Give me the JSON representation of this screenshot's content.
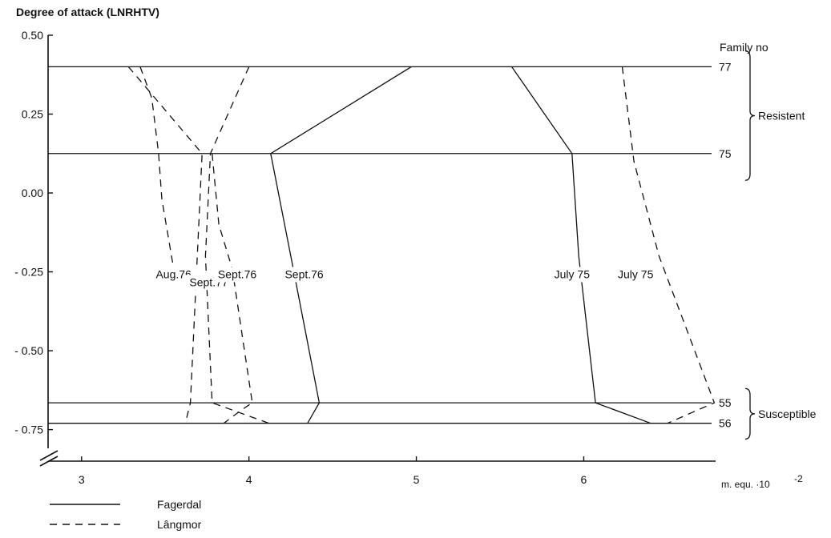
{
  "chart_data": {
    "type": "line",
    "ylabel": "Degree of attack (LNRHTV)",
    "xlabel": "m. equ. ·10",
    "xlabel_exponent": "-2",
    "xlim": [
      2.8,
      6.85
    ],
    "ylim": [
      -0.85,
      0.5
    ],
    "xticks": [
      3,
      4,
      5,
      6
    ],
    "xtick_labels": [
      "3",
      "4",
      "5",
      "6"
    ],
    "yticks": [
      0.5,
      0.25,
      0.0,
      -0.25,
      -0.5,
      -0.75
    ],
    "ytick_labels": [
      "0.50",
      "0.25",
      "0.00",
      "- 0.25",
      "- 0.50",
      "- 0.75"
    ],
    "family_header": "Family no",
    "families": [
      {
        "name": "77",
        "y": 0.4
      },
      {
        "name": "75",
        "y": 0.125
      },
      {
        "name": "55",
        "y": -0.665
      },
      {
        "name": "56",
        "y": -0.73
      }
    ],
    "groups": [
      {
        "label": "Resistent",
        "y_from": 0.45,
        "y_to": 0.04
      },
      {
        "label": "Susceptible",
        "y_from": -0.62,
        "y_to": -0.78
      }
    ],
    "series": [
      {
        "name": "Aug.76",
        "style": "dashed",
        "label_pos": [
          3.55,
          -0.27
        ],
        "points": [
          [
            3.28,
            0.4
          ],
          [
            3.72,
            0.125
          ],
          [
            3.65,
            -0.665
          ],
          [
            3.62,
            -0.73
          ]
        ]
      },
      {
        "name": "Aug.76",
        "style": "dashed",
        "label_pos": null,
        "points": [
          [
            3.35,
            0.4
          ],
          [
            3.42,
            0.3
          ],
          [
            3.46,
            0.125
          ],
          [
            3.48,
            -0.02
          ],
          [
            3.55,
            -0.24
          ]
        ]
      },
      {
        "name": "Sept.77",
        "style": "dashed",
        "label_pos": [
          3.76,
          -0.295
        ],
        "points": [
          [
            4.0,
            0.4
          ],
          [
            3.77,
            0.125
          ],
          [
            3.74,
            -0.2
          ],
          [
            3.78,
            -0.665
          ],
          [
            4.12,
            -0.73
          ]
        ]
      },
      {
        "name": "Sept.76",
        "style": "dashed",
        "label_pos": [
          3.93,
          -0.27
        ],
        "points": [
          [
            3.78,
            0.125
          ],
          [
            3.82,
            -0.1
          ],
          [
            3.9,
            -0.24
          ],
          [
            4.02,
            -0.665
          ],
          [
            3.95,
            -0.69
          ],
          [
            3.85,
            -0.73
          ]
        ]
      },
      {
        "name": "Sept.76",
        "style": "solid",
        "label_pos": [
          4.33,
          -0.27
        ],
        "points": [
          [
            4.97,
            0.4
          ],
          [
            4.13,
            0.125
          ],
          [
            4.25,
            -0.2
          ],
          [
            4.42,
            -0.665
          ],
          [
            4.35,
            -0.73
          ]
        ]
      },
      {
        "name": "July 75",
        "style": "solid",
        "label_pos": [
          5.93,
          -0.27
        ],
        "points": [
          [
            5.57,
            0.4
          ],
          [
            5.93,
            0.125
          ],
          [
            5.97,
            -0.2
          ],
          [
            6.07,
            -0.665
          ],
          [
            6.4,
            -0.73
          ]
        ]
      },
      {
        "name": "July 75",
        "style": "dashed",
        "label_pos": [
          6.31,
          -0.27
        ],
        "points": [
          [
            6.23,
            0.4
          ],
          [
            6.3,
            0.1
          ],
          [
            6.45,
            -0.2
          ],
          [
            6.78,
            -0.665
          ],
          [
            6.5,
            -0.73
          ]
        ]
      }
    ],
    "legend": [
      {
        "label": "Fagerdal",
        "style": "solid"
      },
      {
        "label": "Lângmor",
        "style": "dashed"
      }
    ],
    "legend_position": "bottom-left",
    "grid": false
  }
}
